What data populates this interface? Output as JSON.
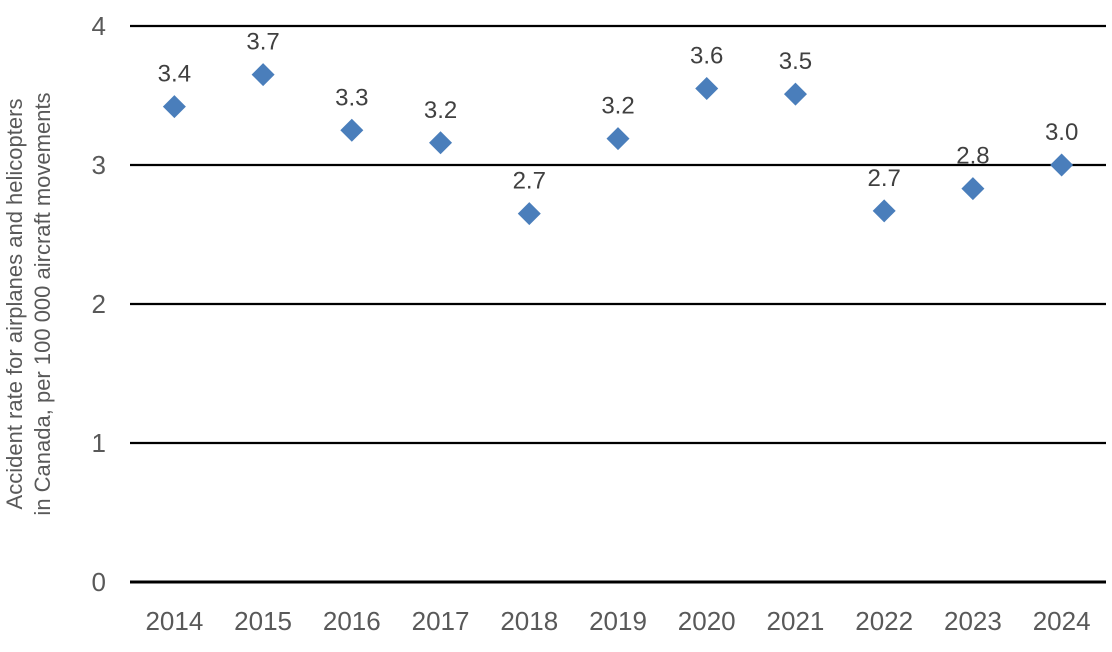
{
  "chart_data": {
    "type": "scatter",
    "title": "",
    "xlabel": "",
    "ylabel_line1": "Accident rate for airplanes and helicopters",
    "ylabel_line2": "in Canada, per 100 000 aircraft movements",
    "categories": [
      "2014",
      "2015",
      "2016",
      "2017",
      "2018",
      "2019",
      "2020",
      "2021",
      "2022",
      "2023",
      "2024"
    ],
    "series": [
      {
        "name": "Accident rate per 100 000 aircraft movements",
        "values": [
          3.4,
          3.7,
          3.3,
          3.2,
          2.7,
          3.2,
          3.6,
          3.5,
          2.7,
          2.8,
          3.0
        ],
        "plotted_values": [
          3.42,
          3.65,
          3.25,
          3.16,
          2.65,
          3.19,
          3.55,
          3.51,
          2.67,
          2.83,
          3.0
        ],
        "data_labels": [
          "3.4",
          "3.7",
          "3.3",
          "3.2",
          "2.7",
          "3.2",
          "3.6",
          "3.5",
          "2.7",
          "2.8",
          "3.0"
        ]
      }
    ],
    "ylim": [
      0,
      4
    ],
    "yticks": [
      "0",
      "1",
      "2",
      "3",
      "4"
    ],
    "grid": "horizontal",
    "legend": "none",
    "marker": "diamond",
    "colors": {
      "marker": "#4A7EBB",
      "data_label": "#404040",
      "axis_label": "#595959",
      "axis_title": "#595959",
      "gridline": "#000000",
      "background": "#ffffff"
    }
  }
}
